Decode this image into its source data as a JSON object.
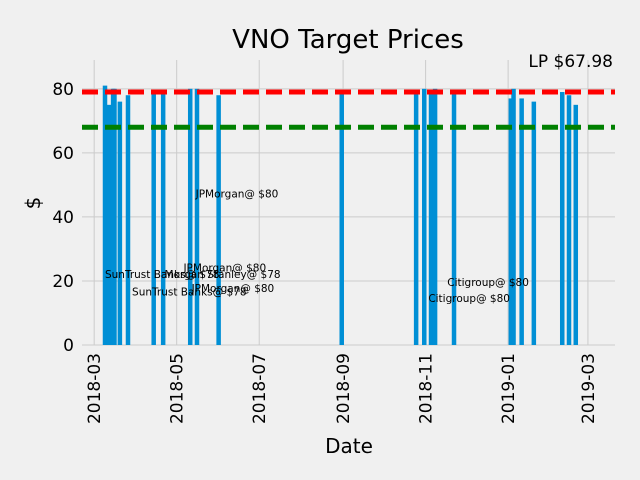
{
  "chart_data": {
    "type": "bar",
    "title": "VNO Target Prices",
    "xlabel": "Date",
    "ylabel": "$",
    "ylim": [
      0,
      89
    ],
    "xlim": [
      "2018-02-20",
      "2019-03-21"
    ],
    "yticks": [
      0,
      20,
      40,
      60,
      80
    ],
    "xticks": [
      "2018-03",
      "2018-05",
      "2018-07",
      "2018-09",
      "2018-11",
      "2019-01",
      "2019-03"
    ],
    "grid": true,
    "colors": {
      "bars": "#008fd5",
      "high_line": "#ff0000",
      "low_line": "#008000",
      "background": "#f0f0f0",
      "grid": "#cbcbcb"
    },
    "lines": [
      {
        "label": "",
        "value": 79,
        "color": "#ff0000",
        "style": "dashed"
      },
      {
        "label": "",
        "value": 68,
        "color": "#008000",
        "style": "dashed"
      }
    ],
    "last_price_label": "LP $67.98",
    "series": [
      {
        "x": [
          "2018-03-09",
          "2018-03-12",
          "2018-03-15",
          "2018-03-16",
          "2018-03-20",
          "2018-03-26",
          "2018-04-14",
          "2018-04-21",
          "2018-05-11",
          "2018-05-16",
          "2018-06-01",
          "2018-08-31",
          "2018-10-25",
          "2018-10-31",
          "2018-11-05",
          "2018-11-08",
          "2018-11-22",
          "2019-01-03",
          "2019-01-05",
          "2019-01-11",
          "2019-01-20",
          "2019-02-10",
          "2019-02-15",
          "2019-02-20"
        ],
        "values": [
          81,
          75,
          80,
          80,
          76,
          78,
          79,
          79,
          80,
          80,
          78,
          79,
          79,
          80,
          79,
          80,
          79,
          77,
          80,
          77,
          76,
          79,
          78,
          75
        ]
      }
    ],
    "annotations": [
      {
        "text": "SunTrust Banks@ $78",
        "x": "2018-03-09",
        "y": 21
      },
      {
        "text": "SunTrust Banks@ $78",
        "x": "2018-03-29",
        "y": 15.5
      },
      {
        "text": "Morgan Stanley@ $78",
        "x": "2018-04-22",
        "y": 21
      },
      {
        "text": "JPMorgan@ $80",
        "x": "2018-05-06",
        "y": 23
      },
      {
        "text": "JPMorgan@ $80",
        "x": "2018-05-12",
        "y": 16.5
      },
      {
        "text": "JPMorgan@ $80",
        "x": "2018-05-15",
        "y": 46
      },
      {
        "text": "Citigroup@ $80",
        "x": "2018-11-03",
        "y": 13.5
      },
      {
        "text": "Citigroup@ $80",
        "x": "2018-11-17",
        "y": 18.5
      }
    ]
  }
}
